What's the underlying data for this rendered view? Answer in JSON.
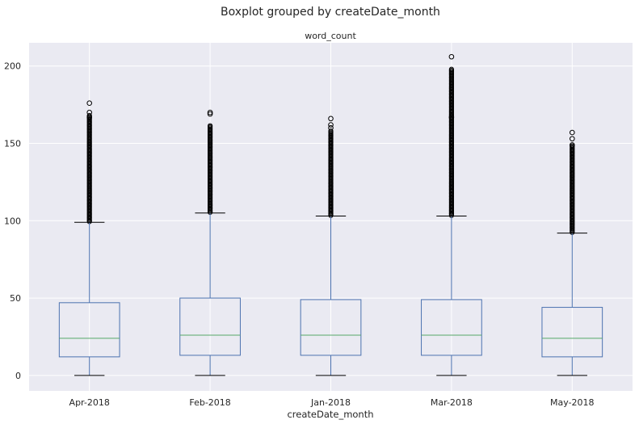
{
  "chart_data": {
    "type": "box",
    "suptitle": "Boxplot grouped by createDate_month",
    "title": "word_count",
    "xlabel": "createDate_month",
    "ylabel": "",
    "ylim": [
      -10,
      215
    ],
    "yticks": [
      0,
      50,
      100,
      150,
      200
    ],
    "grid": true,
    "categories": [
      "Apr-2018",
      "Feb-2018",
      "Jan-2018",
      "Mar-2018",
      "May-2018"
    ],
    "boxes": [
      {
        "label": "Apr-2018",
        "whislo": 0,
        "q1": 12,
        "med": 24,
        "q3": 47,
        "whishi": 99,
        "flier_max": 176,
        "fliers_upper": [
          170,
          167
        ]
      },
      {
        "label": "Feb-2018",
        "whislo": 0,
        "q1": 13,
        "med": 26,
        "q3": 50,
        "whishi": 105,
        "flier_max": 170,
        "fliers_upper": [
          169
        ]
      },
      {
        "label": "Jan-2018",
        "whislo": 0,
        "q1": 13,
        "med": 26,
        "q3": 49,
        "whishi": 103,
        "flier_max": 166,
        "fliers_upper": [
          162,
          160
        ]
      },
      {
        "label": "Mar-2018",
        "whislo": 0,
        "q1": 13,
        "med": 26,
        "q3": 49,
        "whishi": 103,
        "flier_max": 206,
        "fliers_upper": [
          167
        ]
      },
      {
        "label": "May-2018",
        "whislo": 0,
        "q1": 12,
        "med": 24,
        "q3": 44,
        "whishi": 92,
        "flier_max": 157,
        "fliers_upper": [
          153,
          149
        ]
      }
    ],
    "colors": {
      "background": "#eaeaf2",
      "grid": "#ffffff",
      "box": "#4c72b0",
      "median": "#55a868",
      "whisker_cap": "#000000",
      "flier": "#000000"
    }
  }
}
